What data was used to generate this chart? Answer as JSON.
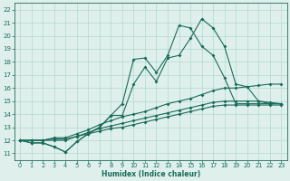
{
  "xlabel": "Humidex (Indice chaleur)",
  "xlim": [
    -0.5,
    23.5
  ],
  "ylim": [
    10.5,
    22.5
  ],
  "yticks": [
    11,
    12,
    13,
    14,
    15,
    16,
    17,
    18,
    19,
    20,
    21,
    22
  ],
  "xticks": [
    0,
    1,
    2,
    3,
    4,
    5,
    6,
    7,
    8,
    9,
    10,
    11,
    12,
    13,
    14,
    15,
    16,
    17,
    18,
    19,
    20,
    21,
    22,
    23
  ],
  "bg_color": "#dff0ec",
  "line_color": "#1a6b5a",
  "grid_color": "#b0d8d0",
  "series": [
    [
      12.0,
      11.8,
      11.8,
      11.5,
      11.1,
      11.9,
      12.5,
      13.0,
      13.9,
      13.9,
      16.3,
      17.6,
      16.5,
      18.3,
      18.5,
      19.8,
      21.3,
      20.6,
      19.2,
      16.3,
      16.1,
      15.0,
      14.8,
      14.8
    ],
    [
      12.0,
      11.8,
      11.8,
      11.5,
      11.1,
      11.9,
      12.5,
      13.0,
      13.9,
      14.8,
      18.2,
      18.3,
      17.2,
      18.5,
      20.8,
      20.6,
      19.2,
      18.5,
      16.8,
      14.8,
      14.8,
      14.8,
      14.8,
      14.8
    ],
    [
      12.0,
      12.0,
      12.0,
      12.2,
      12.2,
      12.5,
      12.8,
      13.2,
      13.5,
      13.8,
      14.0,
      14.2,
      14.5,
      14.8,
      15.0,
      15.2,
      15.5,
      15.8,
      16.0,
      16.0,
      16.1,
      16.2,
      16.3,
      16.3
    ],
    [
      12.0,
      12.0,
      12.0,
      12.0,
      12.0,
      12.3,
      12.6,
      12.9,
      13.1,
      13.3,
      13.5,
      13.7,
      13.9,
      14.1,
      14.3,
      14.5,
      14.7,
      14.9,
      15.0,
      15.0,
      15.0,
      15.0,
      14.9,
      14.8
    ],
    [
      12.0,
      12.0,
      12.0,
      12.1,
      12.1,
      12.3,
      12.5,
      12.7,
      12.9,
      13.0,
      13.2,
      13.4,
      13.6,
      13.8,
      14.0,
      14.2,
      14.4,
      14.6,
      14.7,
      14.7,
      14.7,
      14.7,
      14.7,
      14.7
    ]
  ]
}
